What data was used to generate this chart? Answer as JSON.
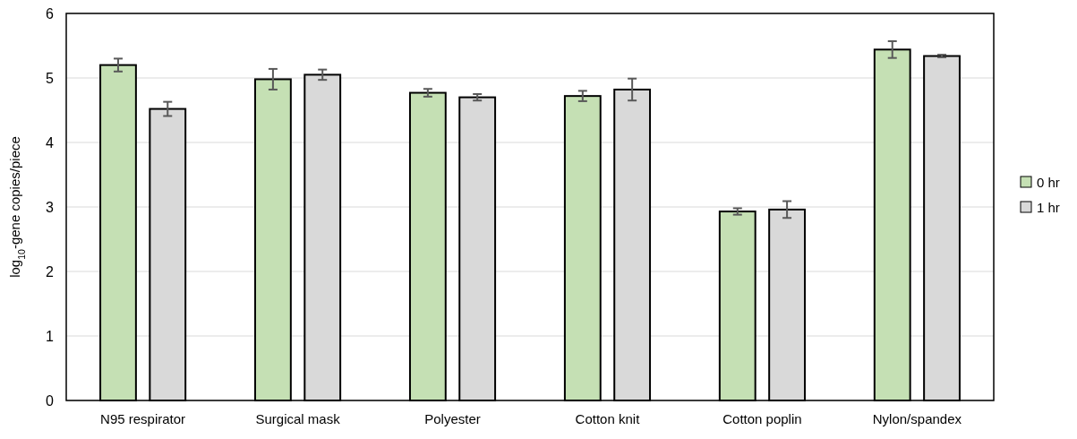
{
  "chart_data": {
    "type": "bar",
    "ylabel": "log$_{10}$-gene copies/piece",
    "categories": [
      "N95 respirator",
      "Surgical mask",
      "Polyester",
      "Cotton knit",
      "Cotton poplin",
      "Nylon/spandex"
    ],
    "series": [
      {
        "name": "0 hr",
        "color": "#c5e0b4",
        "values": [
          5.2,
          4.98,
          4.77,
          4.72,
          2.93,
          5.44
        ],
        "errors": [
          0.1,
          0.16,
          0.06,
          0.08,
          0.05,
          0.13
        ]
      },
      {
        "name": "1 hr",
        "color": "#d9d9d9",
        "values": [
          4.52,
          5.05,
          4.7,
          4.82,
          2.96,
          5.34
        ],
        "errors": [
          0.11,
          0.08,
          0.05,
          0.17,
          0.13,
          0.02
        ]
      }
    ],
    "ylim": [
      0,
      6
    ],
    "yticks": [
      0,
      1,
      2,
      3,
      4,
      5,
      6
    ],
    "grid": "y",
    "legend": "right"
  }
}
